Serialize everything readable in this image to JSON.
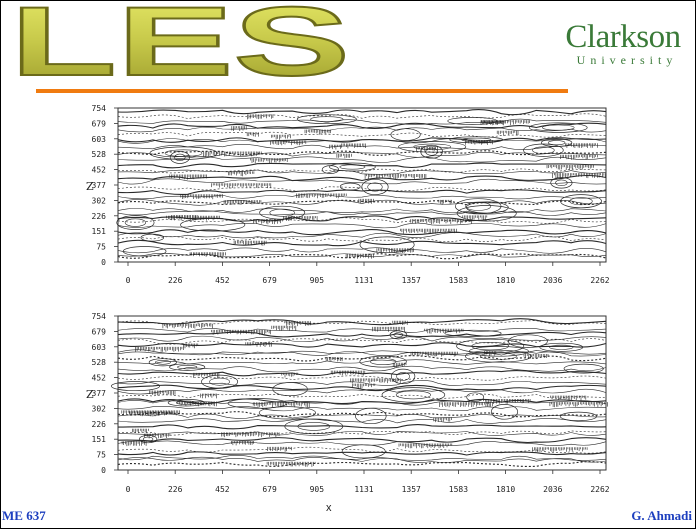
{
  "slide": {
    "title": "LES",
    "logo": {
      "name": "Clarkson",
      "sub": "University"
    },
    "footer": {
      "left": "ME 637",
      "right": "G. Ahmadi",
      "center": "x"
    }
  },
  "chart_data": [
    {
      "type": "contour",
      "ylabel": "Z",
      "yticks": [
        "754",
        "679",
        "603",
        "528",
        "452",
        "377",
        "302",
        "226",
        "151",
        "75",
        "0"
      ],
      "xticks": [
        "0",
        "226",
        "452",
        "679",
        "905",
        "1131",
        "1357",
        "1583",
        "1810",
        "2036",
        "2262"
      ],
      "xlim": [
        0,
        2262
      ],
      "ylim": [
        0,
        754
      ]
    },
    {
      "type": "contour",
      "ylabel": "Z",
      "yticks": [
        "754",
        "679",
        "603",
        "528",
        "452",
        "377",
        "302",
        "226",
        "151",
        "75",
        "0"
      ],
      "xticks": [
        "0",
        "226",
        "452",
        "679",
        "905",
        "1131",
        "1357",
        "1583",
        "1810",
        "2036",
        "2262"
      ],
      "xlim": [
        0,
        2262
      ],
      "ylim": [
        0,
        754
      ]
    }
  ]
}
